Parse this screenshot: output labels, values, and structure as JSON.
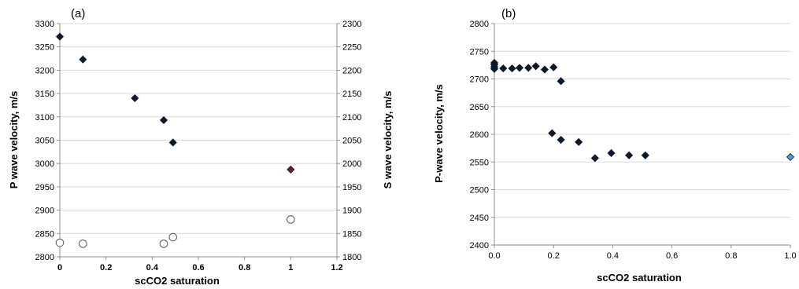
{
  "chart_data": [
    {
      "type": "scatter",
      "panel_label": "(a)",
      "xlabel": "scCO2  saturation",
      "ylabel": "P  wave velocity, m/s",
      "y2label": "S  wave velocity, m/s",
      "xlim": [
        0,
        1.2
      ],
      "ylim": [
        2800,
        3300
      ],
      "y2lim": [
        1800,
        2300
      ],
      "x_ticks": [
        "0",
        "0.2",
        "0.4",
        "0.6",
        "0.8",
        "1",
        "1.2"
      ],
      "y_ticks": [
        "2800",
        "2850",
        "2900",
        "2950",
        "3000",
        "3050",
        "3100",
        "3150",
        "3200",
        "3250",
        "3300"
      ],
      "y2_ticks": [
        "1800",
        "1850",
        "1900",
        "1950",
        "2000",
        "2050",
        "2100",
        "2150",
        "2200",
        "2250",
        "2300"
      ],
      "grid": "horizontal",
      "series": [
        {
          "marker": "diamond",
          "color": "#0b1a2a",
          "axis": "left",
          "x": [
            0,
            0.1,
            0.325,
            0.45,
            0.49,
            1.0
          ],
          "y": [
            3272,
            3223,
            3140,
            3093,
            3045,
            2987
          ],
          "point_colors": [
            "#0b1a2a",
            "#0b1a2a",
            "#0b1a2a",
            "#0b1a2a",
            "#0b1a2a",
            "#7a1a1a"
          ]
        },
        {
          "marker": "circle-open",
          "color": "#555555",
          "axis": "right",
          "x": [
            0,
            0.1,
            0.45,
            0.49,
            1.0
          ],
          "y": [
            1830,
            1828,
            1828,
            1842,
            1880
          ]
        }
      ]
    },
    {
      "type": "scatter",
      "panel_label": "(b)",
      "xlabel": "scCO2  saturation",
      "ylabel": "P-wave velocity, m/s",
      "xlim": [
        0,
        1.0
      ],
      "ylim": [
        2400,
        2800
      ],
      "x_ticks": [
        "0.0",
        "0.2",
        "0.4",
        "0.6",
        "0.8",
        "1.0"
      ],
      "y_ticks": [
        "2400",
        "2450",
        "2500",
        "2550",
        "2600",
        "2650",
        "2700",
        "2750",
        "2800"
      ],
      "grid": "horizontal",
      "series": [
        {
          "marker": "diamond",
          "color": "#0b1a2a",
          "x": [
            0,
            0,
            0,
            0,
            0.03,
            0.06,
            0.085,
            0.115,
            0.14,
            0.17,
            0.2,
            0.225,
            0.195,
            0.225,
            0.285,
            0.34,
            0.395,
            0.455,
            0.51,
            1.0
          ],
          "y": [
            2718,
            2722,
            2726,
            2729,
            2719,
            2719,
            2720,
            2720,
            2723,
            2717,
            2721,
            2696,
            2602,
            2590,
            2586,
            2557,
            2566,
            2562,
            2562,
            2559
          ],
          "point_colors": [
            "#0b1a2a",
            "#0b1a2a",
            "#0b1a2a",
            "#0b1a2a",
            "#0b1a2a",
            "#0b1a2a",
            "#0b1a2a",
            "#0b1a2a",
            "#0b1a2a",
            "#0b1a2a",
            "#0b1a2a",
            "#0b1a2a",
            "#0b1a2a",
            "#0b1a2a",
            "#0b1a2a",
            "#0b1a2a",
            "#0b1a2a",
            "#0b1a2a",
            "#0b1a2a",
            "#4a9fd8"
          ]
        }
      ]
    }
  ]
}
